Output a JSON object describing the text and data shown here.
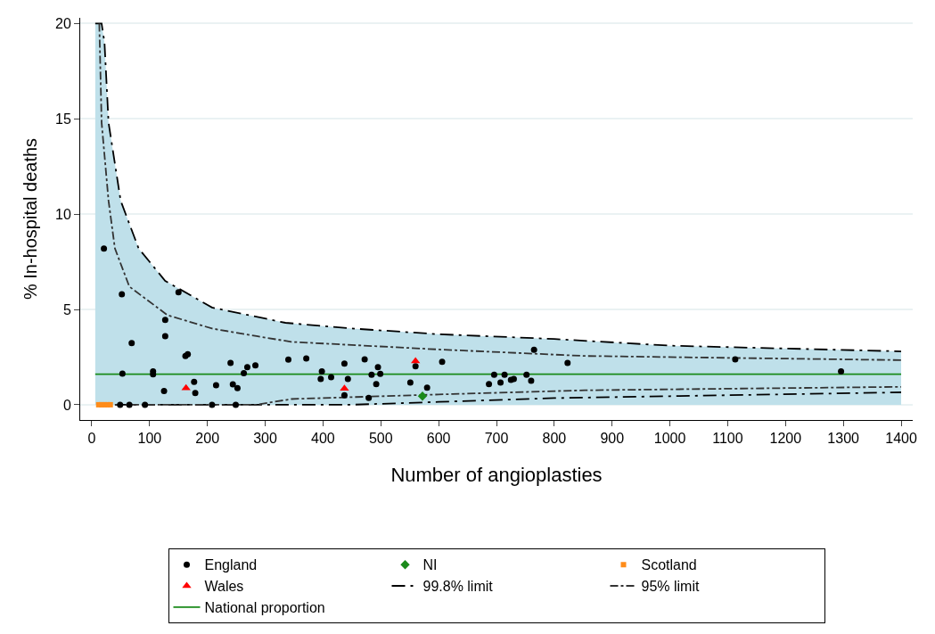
{
  "chart_data": {
    "type": "scatter",
    "xlabel": "Number of angioplasties",
    "ylabel": "% In-hospital deaths",
    "xlim": [
      -20,
      1420
    ],
    "ylim": [
      -0.8,
      20.3
    ],
    "xticks": [
      0,
      100,
      200,
      300,
      400,
      500,
      600,
      700,
      800,
      900,
      1000,
      1100,
      1200,
      1300,
      1400
    ],
    "yticks": [
      0,
      5,
      10,
      15,
      20
    ],
    "grid": "y",
    "legend": "bottom",
    "series": [
      {
        "name": "99.8% limit",
        "type": "area",
        "line_style": "longdashdot",
        "color": "#bfe0ea",
        "x": [
          6,
          17,
          22,
          29,
          50,
          81,
          127,
          208,
          335,
          450,
          500,
          600,
          800,
          1000,
          1400
        ],
        "values": [
          20,
          20,
          19,
          14.8,
          10.7,
          8.2,
          6.5,
          5.1,
          4.3,
          4.0,
          3.9,
          3.7,
          3.45,
          3.1,
          2.8
        ]
      },
      {
        "type": "line",
        "line_style": "longdashdot",
        "color": "#000000",
        "x": [
          40,
          81,
          127,
          208,
          335,
          450,
          500,
          600,
          800,
          1000,
          1400
        ],
        "values": [
          0,
          0,
          0,
          0,
          0,
          0,
          0.05,
          0.15,
          0.35,
          0.45,
          0.65
        ]
      },
      {
        "name": "95% limit",
        "type": "line",
        "line_style": "dashdot",
        "color": "#333333",
        "x": [
          13,
          17,
          29,
          40,
          65,
          131,
          208,
          285,
          345,
          600,
          853,
          1400
        ],
        "values": [
          20,
          14.8,
          10.7,
          8.2,
          6.2,
          4.7,
          4.0,
          3.6,
          3.3,
          2.9,
          2.56,
          2.34
        ]
      },
      {
        "type": "line",
        "line_style": "dashdot",
        "color": "#333333",
        "x": [
          40,
          65,
          131,
          208,
          285,
          345,
          600,
          853,
          1400
        ],
        "values": [
          0,
          0,
          0,
          0,
          0,
          0.3,
          0.54,
          0.76,
          0.94
        ]
      },
      {
        "name": "National proportion",
        "type": "line",
        "line_style": "solid",
        "color": "#1a8a1a",
        "x": [
          6,
          1400
        ],
        "values": [
          1.6,
          1.6
        ]
      },
      {
        "name": "England",
        "marker": "circle",
        "color": "#000000",
        "x": [
          21,
          52,
          150,
          127,
          127,
          69,
          162,
          166,
          240,
          340,
          371,
          269,
          283,
          53,
          106,
          106,
          263,
          125,
          177,
          179,
          215,
          244,
          252,
          49,
          65,
          92,
          208,
          249,
          398,
          396,
          414,
          437,
          443,
          472,
          484,
          495,
          499,
          492,
          437,
          479,
          560,
          606,
          551,
          580,
          687,
          696,
          707,
          714,
          725,
          730,
          752,
          760,
          765,
          823,
          1113,
          1296
        ],
        "values": [
          8.2,
          5.8,
          5.9,
          4.45,
          3.6,
          3.24,
          2.56,
          2.65,
          2.2,
          2.37,
          2.43,
          1.97,
          2.07,
          1.63,
          1.75,
          1.6,
          1.66,
          0.72,
          1.2,
          0.62,
          1.03,
          1.07,
          0.87,
          0,
          0,
          0,
          0,
          0,
          1.75,
          1.35,
          1.44,
          2.16,
          1.35,
          2.38,
          1.57,
          1.97,
          1.62,
          1.08,
          0.5,
          0.36,
          2.02,
          2.25,
          1.17,
          0.9,
          1.08,
          1.57,
          1.17,
          1.57,
          1.3,
          1.35,
          1.57,
          1.26,
          2.88,
          2.2,
          2.38,
          1.75
        ]
      },
      {
        "name": "NI",
        "marker": "diamond",
        "color": "#1a8a1a",
        "x": [
          572
        ],
        "values": [
          0.45
        ]
      },
      {
        "name": "Scotland",
        "marker": "square",
        "color": "#ff8c1a",
        "x": [
          12,
          17,
          22,
          27,
          32
        ],
        "values": [
          0,
          0,
          0,
          0,
          0
        ]
      },
      {
        "name": "Wales",
        "marker": "triangle",
        "color": "#ff0000",
        "x": [
          163,
          437,
          560
        ],
        "values": [
          0.87,
          0.85,
          2.29
        ]
      }
    ]
  }
}
